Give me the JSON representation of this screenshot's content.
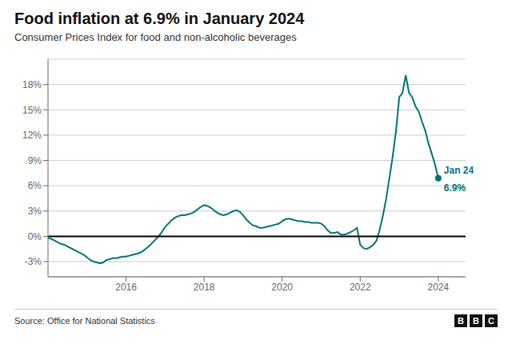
{
  "chart_data": {
    "type": "line",
    "title": "Food inflation at 6.9% in January 2024",
    "subtitle": "Consumer Prices Index for food and non-alcoholic beverages",
    "source": "Source: Office for National Statistics",
    "logo": [
      "B",
      "B",
      "C"
    ],
    "color": "#00737a",
    "x": [
      2014.0,
      2014.083,
      2014.167,
      2014.25,
      2014.333,
      2014.417,
      2014.5,
      2014.583,
      2014.667,
      2014.75,
      2014.833,
      2014.917,
      2015.0,
      2015.083,
      2015.167,
      2015.25,
      2015.333,
      2015.417,
      2015.5,
      2015.583,
      2015.667,
      2015.75,
      2015.833,
      2015.917,
      2016.0,
      2016.083,
      2016.167,
      2016.25,
      2016.333,
      2016.417,
      2016.5,
      2016.583,
      2016.667,
      2016.75,
      2016.833,
      2016.917,
      2017.0,
      2017.083,
      2017.167,
      2017.25,
      2017.333,
      2017.417,
      2017.5,
      2017.583,
      2017.667,
      2017.75,
      2017.833,
      2017.917,
      2018.0,
      2018.083,
      2018.167,
      2018.25,
      2018.333,
      2018.417,
      2018.5,
      2018.583,
      2018.667,
      2018.75,
      2018.833,
      2018.917,
      2019.0,
      2019.083,
      2019.167,
      2019.25,
      2019.333,
      2019.417,
      2019.5,
      2019.583,
      2019.667,
      2019.75,
      2019.833,
      2019.917,
      2020.0,
      2020.083,
      2020.167,
      2020.25,
      2020.333,
      2020.417,
      2020.5,
      2020.583,
      2020.667,
      2020.75,
      2020.833,
      2020.917,
      2021.0,
      2021.083,
      2021.167,
      2021.25,
      2021.333,
      2021.417,
      2021.5,
      2021.583,
      2021.667,
      2021.75,
      2021.833,
      2021.917,
      2022.0,
      2022.083,
      2022.167,
      2022.25,
      2022.333,
      2022.417,
      2022.5,
      2022.583,
      2022.667,
      2022.75,
      2022.833,
      2022.917,
      2023.0,
      2023.083,
      2023.167,
      2023.25,
      2023.333,
      2023.417,
      2023.5,
      2023.583,
      2023.667,
      2023.75,
      2023.833,
      2023.917,
      2024.0
    ],
    "values": [
      -0.2,
      -0.3,
      -0.5,
      -0.7,
      -0.9,
      -1.0,
      -1.2,
      -1.4,
      -1.6,
      -1.8,
      -2.0,
      -2.2,
      -2.5,
      -2.8,
      -3.0,
      -3.1,
      -3.2,
      -3.1,
      -2.8,
      -2.7,
      -2.6,
      -2.6,
      -2.5,
      -2.4,
      -2.4,
      -2.3,
      -2.2,
      -2.1,
      -2.0,
      -1.8,
      -1.5,
      -1.2,
      -0.8,
      -0.4,
      0.0,
      0.5,
      1.1,
      1.5,
      1.9,
      2.2,
      2.4,
      2.5,
      2.5,
      2.6,
      2.7,
      2.9,
      3.2,
      3.5,
      3.7,
      3.6,
      3.4,
      3.1,
      2.8,
      2.6,
      2.5,
      2.6,
      2.8,
      3.0,
      3.1,
      2.9,
      2.5,
      2.0,
      1.6,
      1.3,
      1.2,
      1.0,
      1.0,
      1.1,
      1.2,
      1.3,
      1.4,
      1.5,
      1.8,
      2.0,
      2.1,
      2.0,
      1.9,
      1.8,
      1.8,
      1.7,
      1.7,
      1.6,
      1.6,
      1.6,
      1.5,
      1.2,
      0.7,
      0.4,
      0.4,
      0.5,
      0.2,
      0.2,
      0.3,
      0.5,
      0.7,
      1.0,
      -1.0,
      -1.4,
      -1.5,
      -1.3,
      -1.0,
      -0.5,
      0.8,
      2.5,
      4.5,
      7.0,
      9.5,
      12.5,
      16.5,
      17.0,
      19.1,
      17.0,
      16.5,
      15.4,
      14.8,
      13.6,
      12.5,
      11.0,
      9.8,
      8.5,
      6.9
    ],
    "xlim": [
      2014.0,
      2024.7
    ],
    "xticks": [
      2016,
      2018,
      2020,
      2022,
      2024
    ],
    "ylim": [
      -4.8,
      21.0
    ],
    "yticks": [
      {
        "value": -3,
        "label": "-3%"
      },
      {
        "value": 0,
        "label": "0%"
      },
      {
        "value": 3,
        "label": "3%"
      },
      {
        "value": 6,
        "label": "6%"
      },
      {
        "value": 9,
        "label": "9%"
      },
      {
        "value": 12,
        "label": "12%"
      },
      {
        "value": 15,
        "label": "15%"
      },
      {
        "value": 18,
        "label": "18%"
      }
    ],
    "grid": true,
    "reference_lines": [
      {
        "y": 0,
        "color": "#000000"
      }
    ],
    "annotations": [
      {
        "x": 2024.0,
        "y": 6.9,
        "text": [
          "Jan 24",
          "6.9%"
        ],
        "color": "#00737a",
        "marker": "circle"
      }
    ]
  }
}
